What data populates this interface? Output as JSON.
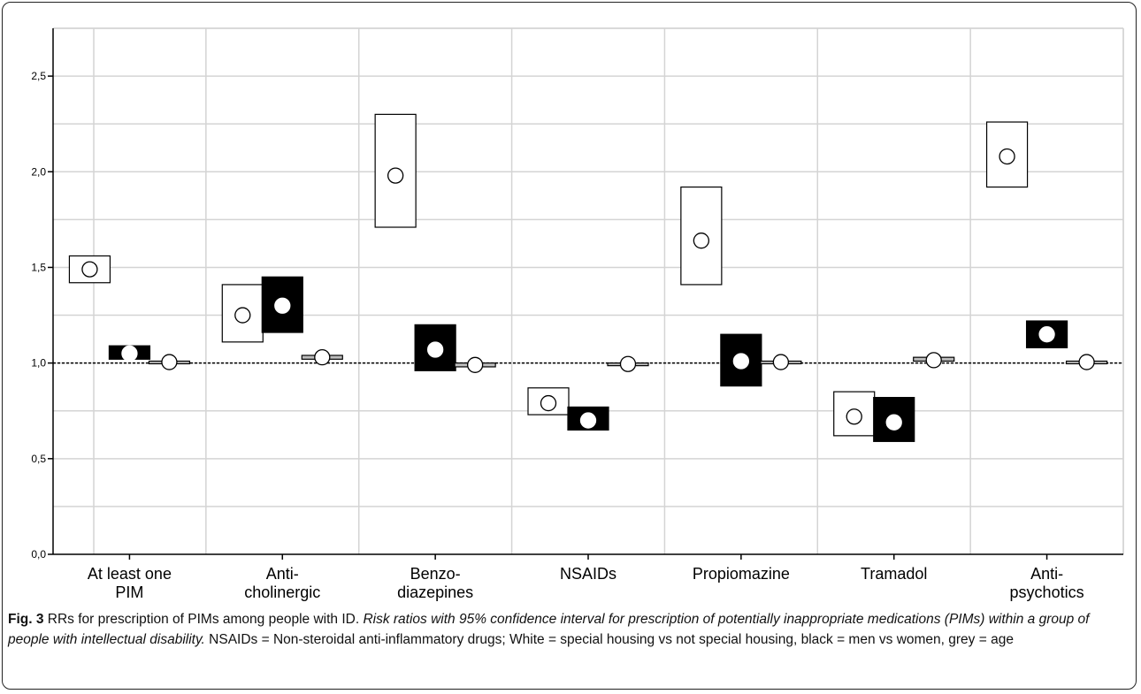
{
  "chart_data": {
    "type": "bar",
    "description_note": "",
    "categories": [
      [
        "At least one",
        "PIM"
      ],
      [
        "Anti-",
        "cholinergic"
      ],
      [
        "Benzo-",
        "diazepines"
      ],
      [
        "NSAIDs"
      ],
      [
        "Propiomazine"
      ],
      [
        "Tramadol"
      ],
      [
        "Anti-",
        "psychotics"
      ]
    ],
    "yticks": [
      "0,0",
      "0,5",
      "1,0",
      "1,5",
      "2,0",
      "2,5"
    ],
    "ytick_values": [
      0,
      0.5,
      1.0,
      1.5,
      2.0,
      2.5
    ],
    "ylim": [
      0,
      2.75
    ],
    "reference_line": 1.0,
    "grid": true,
    "series": [
      {
        "key": "white",
        "fill": "#ffffff",
        "point": [
          1.49,
          1.25,
          1.98,
          0.79,
          1.64,
          0.72,
          2.08
        ],
        "lower": [
          1.42,
          1.11,
          1.71,
          0.73,
          1.41,
          0.62,
          1.92
        ],
        "upper": [
          1.56,
          1.41,
          2.3,
          0.87,
          1.92,
          0.85,
          2.26
        ]
      },
      {
        "key": "black",
        "fill": "#000000",
        "point": [
          1.05,
          1.3,
          1.07,
          0.7,
          1.01,
          0.69,
          1.15
        ],
        "lower": [
          1.02,
          1.16,
          0.96,
          0.65,
          0.88,
          0.59,
          1.08
        ],
        "upper": [
          1.09,
          1.45,
          1.2,
          0.77,
          1.15,
          0.82,
          1.22
        ]
      },
      {
        "key": "grey",
        "fill": "#bdbdbd",
        "point": [
          1.005,
          1.03,
          0.99,
          0.995,
          1.005,
          1.015,
          1.005
        ],
        "lower": [
          1.0,
          1.02,
          0.98,
          0.99,
          1.0,
          1.01,
          1.0
        ],
        "upper": [
          1.01,
          1.04,
          1.0,
          1.0,
          1.01,
          1.03,
          1.01
        ]
      }
    ],
    "colors": {
      "axis": "#000000",
      "grid": "#d4d4d4",
      "box_stroke": "#000000"
    }
  },
  "caption": {
    "label": "Fig. 3",
    "title": " RRs for prescription of PIMs among people with ID. ",
    "italic": "Risk ratios with 95% confidence interval for prescription of potentially inappropriate medications (PIMs) within a group of people with intellectual disability.",
    "rest": " NSAIDs = Non-steroidal anti-inflammatory drugs; White = special housing vs not special housing, black = men vs women, grey = age"
  }
}
